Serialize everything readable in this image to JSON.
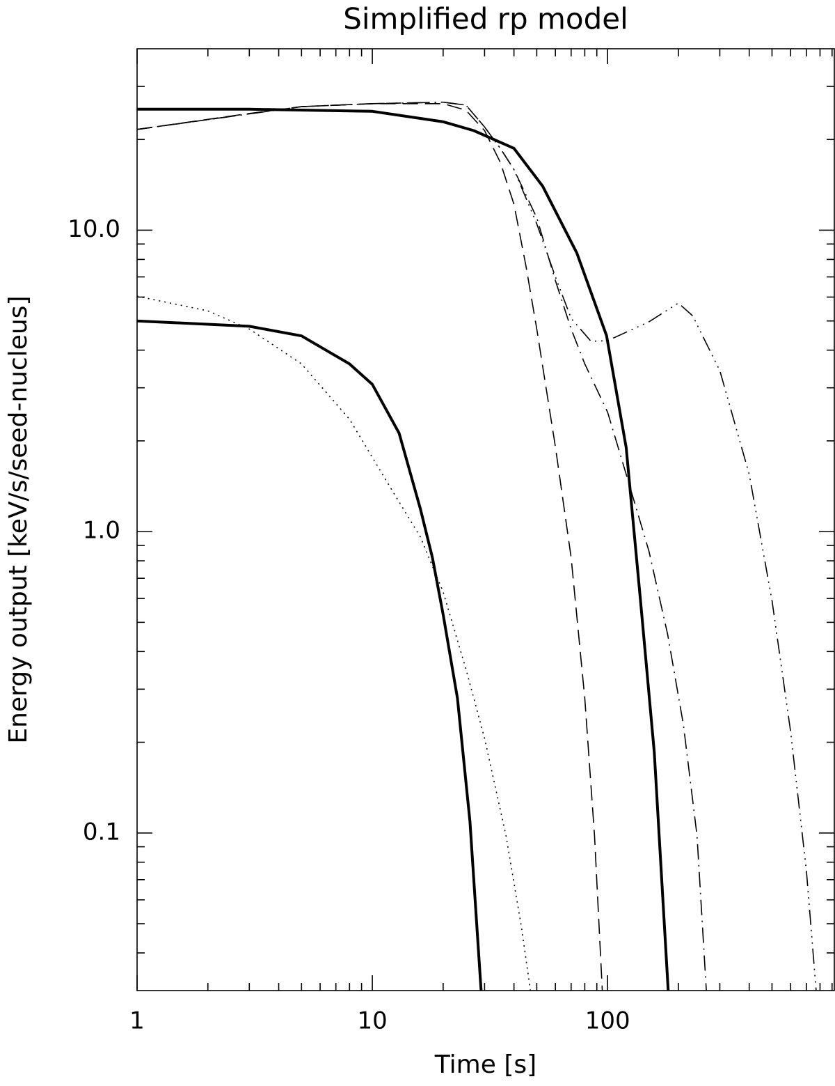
{
  "chart_data": {
    "type": "line",
    "title": "Simplified rp model",
    "x_label": "Time [s]",
    "y_label": "Energy output [keV/s/seed-nucleus]",
    "xscale": "log",
    "yscale": "log",
    "xlim": [
      1,
      920
    ],
    "ylim": [
      0.03,
      40
    ],
    "xticks": [
      1,
      10,
      100
    ],
    "yticks": [
      0.1,
      {
        "value": 1,
        "label": "1.0"
      },
      {
        "value": 10,
        "label": "10.0"
      }
    ],
    "xminor": [
      2,
      3,
      4,
      5,
      6,
      7,
      8,
      9,
      20,
      30,
      40,
      50,
      60,
      70,
      80,
      90,
      200,
      300,
      400,
      500,
      600,
      700,
      800,
      900
    ],
    "yminor": [
      0.04,
      0.05,
      0.06,
      0.07,
      0.08,
      0.09,
      0.2,
      0.3,
      0.4,
      0.5,
      0.6,
      0.7,
      0.8,
      0.9,
      2,
      3,
      4,
      5,
      6,
      7,
      8,
      9,
      20,
      30
    ],
    "series": [
      {
        "color": "#000000",
        "style": "solid",
        "width": 4,
        "x": [
          1,
          3,
          10,
          20,
          27,
          40,
          53,
          74,
          99,
          120,
          138,
          158,
          181
        ],
        "values": [
          25.2,
          25.2,
          24.8,
          22.9,
          21.4,
          18.7,
          14,
          8.4,
          4.47,
          1.9,
          0.59,
          0.185,
          0.03
        ]
      },
      {
        "color": "#000000",
        "style": "solid",
        "width": 4,
        "x": [
          1,
          3,
          5,
          8,
          10,
          13,
          16,
          18,
          20,
          23,
          26,
          29
        ],
        "values": [
          5.0,
          4.8,
          4.46,
          3.6,
          3.08,
          2.12,
          1.19,
          0.82,
          0.53,
          0.28,
          0.109,
          0.03
        ]
      },
      {
        "color": "#000000",
        "style": "dotted",
        "width": 1.6,
        "x": [
          1,
          2,
          3,
          5,
          8,
          12,
          16,
          20,
          25,
          30,
          37,
          43,
          47
        ],
        "values": [
          6.04,
          5.4,
          4.7,
          3.6,
          2.36,
          1.39,
          0.96,
          0.63,
          0.35,
          0.206,
          0.098,
          0.049,
          0.03
        ]
      },
      {
        "color": "#000000",
        "style": "dashed",
        "width": 1.6,
        "x": [
          1,
          3,
          5,
          10,
          20,
          25,
          30,
          35,
          40,
          45,
          50,
          60,
          70,
          80,
          88,
          95
        ],
        "values": [
          21.6,
          24.4,
          25.7,
          26.3,
          26.3,
          25.0,
          21.4,
          16.8,
          12.2,
          7.6,
          4.7,
          1.91,
          0.82,
          0.28,
          0.098,
          0.03
        ]
      },
      {
        "color": "#000000",
        "style": "dashdot",
        "width": 1.6,
        "x": [
          1,
          5,
          10,
          20,
          25,
          30,
          35,
          40,
          50,
          60,
          70,
          80,
          100,
          120,
          150,
          180,
          210,
          240,
          263
        ],
        "values": [
          21.6,
          25.7,
          26.3,
          26.6,
          26,
          22,
          18.7,
          15.9,
          11,
          6.8,
          4.7,
          3.6,
          2.49,
          1.55,
          0.86,
          0.456,
          0.229,
          0.098,
          0.03
        ]
      },
      {
        "color": "#000000",
        "style": "dashdotdot",
        "width": 1.6,
        "x": [
          1,
          5,
          10,
          20,
          25,
          30,
          35,
          40,
          50,
          60,
          70,
          85,
          100,
          150,
          200,
          230,
          300,
          400,
          500,
          600,
          700,
          770
        ],
        "values": [
          21.6,
          25.7,
          26.3,
          26.6,
          26,
          22,
          18.7,
          15.9,
          10.5,
          7,
          5.1,
          4.28,
          4.3,
          4.97,
          5.73,
          5.2,
          3.42,
          1.55,
          0.59,
          0.217,
          0.075,
          0.03
        ]
      }
    ]
  }
}
